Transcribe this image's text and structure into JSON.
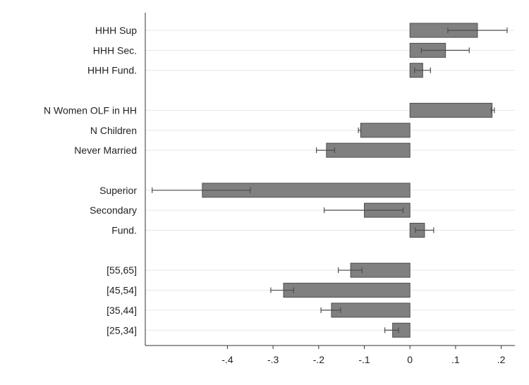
{
  "chart_data": {
    "type": "bar",
    "orientation": "horizontal",
    "title": "",
    "xlabel": "",
    "ylabel": "",
    "xlim": [
      -0.58,
      0.23
    ],
    "x_ticks": [
      -0.4,
      -0.3,
      -0.2,
      -0.1,
      0,
      0.1,
      0.2
    ],
    "x_tick_labels": [
      "-.4",
      "-.3",
      "-.2",
      "-.1",
      "0",
      ".1",
      ".2"
    ],
    "grid": "horizontal",
    "legend": "none",
    "bar_color": "#808080",
    "categories": [
      "HHH Sup",
      "HHH Sec.",
      "HHH Fund.",
      "",
      "N Women OLF in HH",
      "N Children",
      "Never Married",
      "",
      "Superior",
      "Secondary",
      "Fund.",
      "",
      "[55,65]",
      "[45,54]",
      "[35,44]",
      "[25,34]"
    ],
    "values": [
      0.148,
      0.078,
      0.028,
      null,
      0.18,
      -0.108,
      -0.183,
      null,
      -0.455,
      -0.1,
      0.032,
      null,
      -0.13,
      -0.277,
      -0.172,
      -0.038
    ],
    "ci_low": [
      0.083,
      0.025,
      0.01,
      null,
      0.178,
      -0.113,
      -0.205,
      null,
      -0.565,
      -0.188,
      0.012,
      null,
      -0.157,
      -0.305,
      -0.195,
      -0.055
    ],
    "ci_high": [
      0.213,
      0.13,
      0.045,
      null,
      0.185,
      -0.108,
      -0.165,
      null,
      -0.35,
      -0.015,
      0.052,
      null,
      -0.105,
      -0.255,
      -0.152,
      -0.025
    ]
  }
}
